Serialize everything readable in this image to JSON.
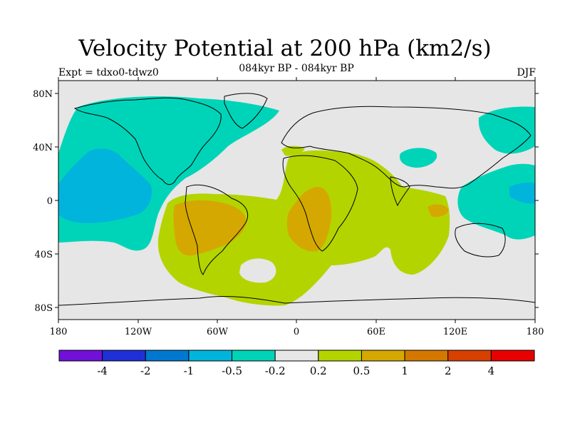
{
  "title": "Velocity Potential at 200 hPa (km2/s)",
  "subtitle": "084kyr BP - 084kyr BP",
  "left_label": "Expt = tdxo0-tdwz0",
  "right_label": "DJF",
  "lat_labels": [
    "80N",
    "40N",
    "0",
    "40S",
    "80S"
  ],
  "lon_labels": [
    "180",
    "120W",
    "60W",
    "0",
    "60E",
    "120E",
    "180"
  ],
  "colorbar": {
    "colors": [
      "#7010d8",
      "#2030d8",
      "#0078d0",
      "#00b4dc",
      "#00d4b8",
      "#e6e6e6",
      "#b4d400",
      "#d4a800",
      "#d47800",
      "#d84000",
      "#e80000"
    ],
    "labels": [
      "-4",
      "-2",
      "-1",
      "-0.5",
      "-0.2",
      "0.2",
      "0.5",
      "1",
      "2",
      "4"
    ]
  },
  "fill_colors": {
    "neutral": "#e6e6e6",
    "cyan": "#00d4b8",
    "blue": "#00b4dc",
    "lime": "#b4d400",
    "orange": "#d4a800",
    "darkorange": "#d47800"
  }
}
